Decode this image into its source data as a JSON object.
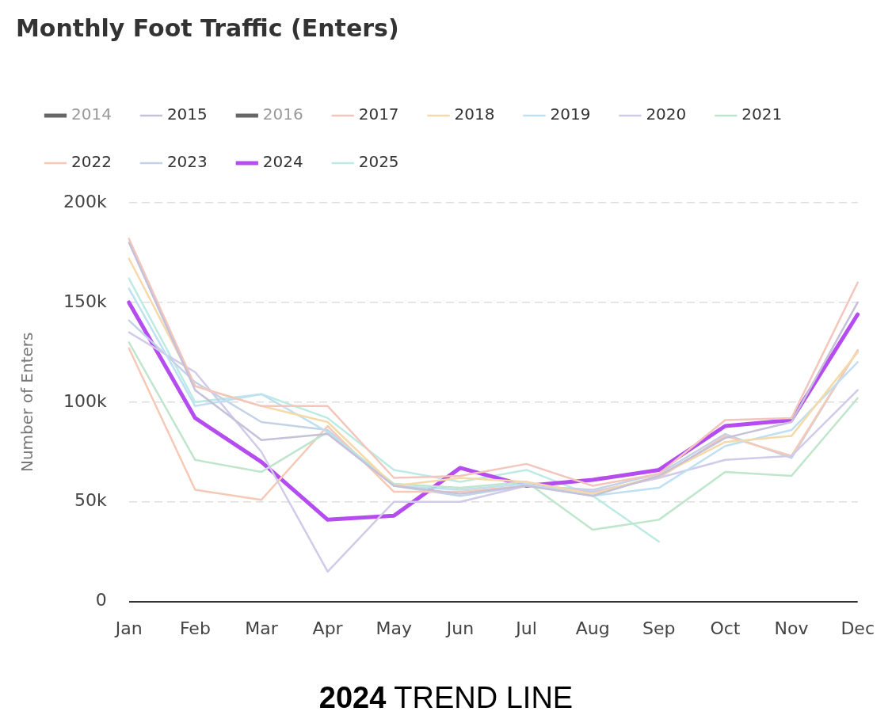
{
  "chart_data": {
    "type": "line",
    "title": "Monthly Foot Traffic (Enters)",
    "ylabel": "Number of Enters",
    "annotations": [
      "2024 TREND LINE"
    ],
    "categories": [
      "Jan",
      "Feb",
      "Mar",
      "Apr",
      "May",
      "Jun",
      "Jul",
      "Aug",
      "Sep",
      "Oct",
      "Nov",
      "Dec"
    ],
    "series": [
      {
        "name": "2014",
        "color": "#666666",
        "values": [
          null,
          null,
          null,
          null,
          null,
          null,
          null,
          null,
          null,
          null,
          null,
          null
        ]
      },
      {
        "name": "2015",
        "color": "#c5c1d8",
        "values": [
          180000,
          106000,
          81000,
          84000,
          58000,
          54000,
          58000,
          53000,
          63000,
          82000,
          90000,
          150000
        ]
      },
      {
        "name": "2016",
        "color": "#666666",
        "values": [
          null,
          null,
          null,
          null,
          null,
          null,
          null,
          null,
          null,
          null,
          null,
          null
        ]
      },
      {
        "name": "2017",
        "color": "#f3c6bd",
        "values": [
          182000,
          108000,
          98000,
          98000,
          62000,
          63000,
          69000,
          58000,
          64000,
          91000,
          92000,
          160000
        ]
      },
      {
        "name": "2018",
        "color": "#f5d9a8",
        "values": [
          172000,
          108000,
          98000,
          90000,
          58000,
          62000,
          60000,
          54000,
          63000,
          80000,
          83000,
          125000
        ]
      },
      {
        "name": "2019",
        "color": "#bfdff2",
        "values": [
          157000,
          98000,
          104000,
          85000,
          58000,
          56000,
          59000,
          53000,
          57000,
          78000,
          86000,
          120000
        ]
      },
      {
        "name": "2020",
        "color": "#cfcbe8",
        "values": [
          135000,
          115000,
          75000,
          15000,
          50000,
          50000,
          58000,
          55000,
          62000,
          71000,
          73000,
          106000
        ]
      },
      {
        "name": "2021",
        "color": "#bfe6cc",
        "values": [
          130000,
          71000,
          65000,
          85000,
          59000,
          57000,
          60000,
          36000,
          41000,
          65000,
          63000,
          102000
        ]
      },
      {
        "name": "2022",
        "color": "#f6c9b6",
        "values": [
          127000,
          56000,
          51000,
          88000,
          55000,
          55000,
          58000,
          55000,
          62000,
          83000,
          73000,
          126000
        ]
      },
      {
        "name": "2023",
        "color": "#c3d3e6",
        "values": [
          141000,
          110000,
          90000,
          86000,
          58000,
          53000,
          58000,
          56000,
          64000,
          84000,
          72000,
          126000
        ]
      },
      {
        "name": "2024",
        "color": "#b44cf0",
        "values": [
          150000,
          92000,
          70000,
          41000,
          43000,
          67000,
          58000,
          61000,
          66000,
          88000,
          91000,
          144000
        ]
      },
      {
        "name": "2025",
        "color": "#bcebe4",
        "values": [
          162000,
          100000,
          104000,
          92000,
          66000,
          60000,
          66000,
          53000,
          30000,
          null,
          null,
          null
        ]
      }
    ],
    "ylim": [
      0,
      200000
    ],
    "yticks": [
      0,
      {
        "value": 50000,
        "label": "50k"
      },
      {
        "value": 100000,
        "label": "100k"
      },
      {
        "value": 150000,
        "label": "150k"
      },
      {
        "value": 200000,
        "label": "200k"
      }
    ],
    "grid": "y",
    "legend": "top",
    "marker": "none",
    "line_style": "solid"
  }
}
